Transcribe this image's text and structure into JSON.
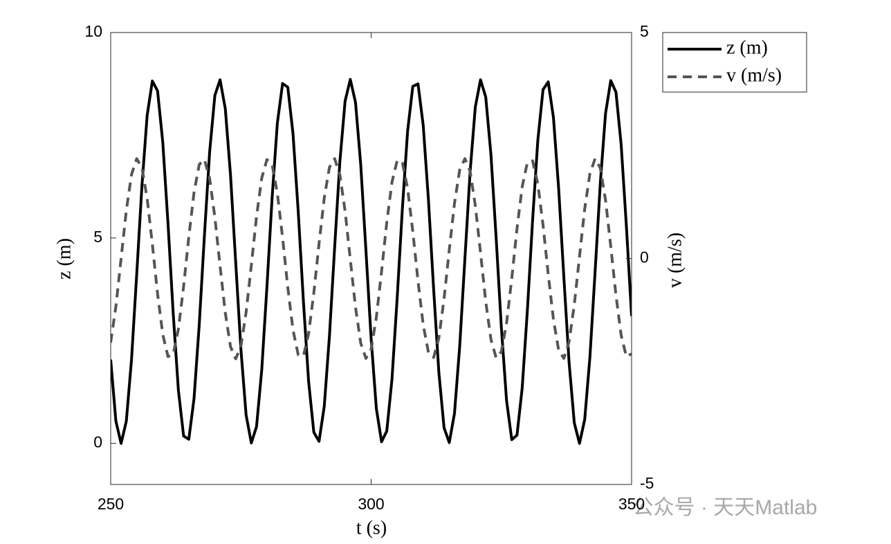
{
  "chart_data": {
    "type": "line",
    "x": [
      250,
      251,
      252,
      253,
      254,
      255,
      256,
      257,
      258,
      259,
      260,
      261,
      262,
      263,
      264,
      265,
      266,
      267,
      268,
      269,
      270,
      271,
      272,
      273,
      274,
      275,
      276,
      277,
      278,
      279,
      280,
      281,
      282,
      283,
      284,
      285,
      286,
      287,
      288,
      289,
      290,
      291,
      292,
      293,
      294,
      295,
      296,
      297,
      298,
      299,
      300,
      301,
      302,
      303,
      304,
      305,
      306,
      307,
      308,
      309,
      310,
      311,
      312,
      313,
      314,
      315,
      316,
      317,
      318,
      319,
      320,
      321,
      322,
      323,
      324,
      325,
      326,
      327,
      328,
      329,
      330,
      331,
      332,
      333,
      334,
      335,
      336,
      337,
      338,
      339,
      340,
      341,
      342,
      343,
      344,
      345,
      346,
      347,
      348,
      349,
      350
    ],
    "series": [
      {
        "name": "z (m)",
        "color": "#000000",
        "dash": false,
        "values": [
          2.04,
          0.54,
          0,
          0.54,
          2.04,
          4.12,
          6.27,
          7.98,
          8.82,
          8.58,
          7.33,
          5.36,
          3.17,
          1.29,
          0.18,
          0.1,
          1.09,
          2.89,
          5.07,
          7.1,
          8.47,
          8.85,
          8.15,
          6.54,
          4.41,
          2.29,
          0.69,
          0.01,
          0.41,
          1.79,
          3.82,
          6.0,
          7.8,
          8.76,
          8.67,
          7.54,
          5.65,
          3.46,
          1.5,
          0.27,
          0.05,
          0.9,
          2.62,
          4.78,
          6.86,
          8.33,
          8.86,
          8.3,
          6.79,
          4.7,
          2.55,
          0.85,
          0.04,
          0.3,
          1.56,
          3.54,
          5.72,
          7.6,
          8.69,
          8.75,
          7.74,
          5.93,
          3.75,
          1.73,
          0.38,
          0.02,
          0.73,
          2.36,
          4.49,
          6.61,
          8.19,
          8.85,
          8.43,
          7.03,
          5.0,
          2.82,
          1.04,
          0.09,
          0.2,
          1.35,
          3.25,
          5.44,
          7.38,
          8.61,
          8.8,
          7.93,
          6.2,
          4.04,
          1.97,
          0.5,
          0,
          0.58,
          2.1,
          4.19,
          6.34,
          8.03,
          8.83,
          8.55,
          7.27,
          5.29,
          3.1
        ]
      },
      {
        "name": "v (m/s)",
        "color": "#555555",
        "dash": true,
        "axis": "y2",
        "values": [
          -1.86,
          -1.06,
          0,
          1.06,
          1.86,
          2.21,
          2.01,
          1.33,
          0.31,
          -0.78,
          -1.68,
          -2.17,
          -2.12,
          -1.56,
          -0.62,
          0.48,
          1.46,
          2.08,
          2.19,
          1.77,
          0.91,
          -0.17,
          -1.2,
          -1.95,
          -2.22,
          -1.94,
          -1.19,
          -0.15,
          0.93,
          1.78,
          2.19,
          2.07,
          1.44,
          0.46,
          -0.64,
          -1.58,
          -2.13,
          -2.16,
          -1.66,
          -0.76,
          0.33,
          1.34,
          2.02,
          2.21,
          1.85,
          1.05,
          -0.02,
          -1.08,
          -1.87,
          -2.21,
          -2.01,
          -1.3,
          -0.29,
          0.8,
          1.69,
          2.17,
          2.12,
          1.55,
          0.6,
          -0.5,
          -1.47,
          -2.08,
          -2.19,
          -1.76,
          -0.89,
          0.19,
          1.22,
          1.96,
          2.21,
          1.93,
          1.17,
          0.13,
          -0.95,
          -1.79,
          -2.2,
          -2.06,
          -1.43,
          -0.44,
          0.66,
          1.59,
          2.13,
          2.16,
          1.65,
          0.74,
          -0.35,
          -1.35,
          -2.03,
          -2.21,
          -1.84,
          -1.02,
          0.04,
          1.1,
          1.88,
          2.21,
          2.0,
          1.29,
          0.27,
          -0.81,
          -1.7,
          -2.17,
          -2.11
        ]
      }
    ],
    "xlabel": "t (s)",
    "ylabel": "z (m)",
    "y2label": "v (m/s)",
    "xlim": [
      250,
      350
    ],
    "xticks": [
      250,
      300,
      350
    ],
    "ylim": [
      -1,
      10
    ],
    "yticks": [
      0,
      5,
      10
    ],
    "y2lim": [
      -5,
      5
    ],
    "y2ticks": [
      -5,
      0,
      5
    ],
    "legend": "outside-right-top",
    "watermark": "公众号 · 天天Matlab"
  }
}
